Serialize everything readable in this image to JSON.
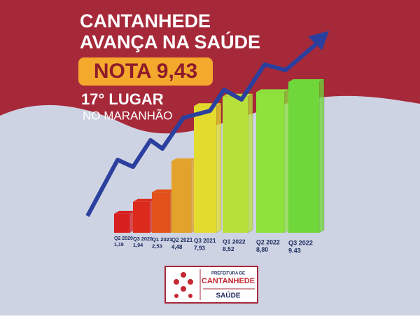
{
  "chart_data": {
    "type": "bar",
    "title": "CANTANHEDE",
    "subtitle": "AVANÇA NA SAÚDE",
    "annotations": [
      "NOTA 9,43",
      "17° LUGAR",
      "NO MARANHÃO"
    ],
    "categories": [
      "Q2 2020",
      "Q3 2020",
      "Q1 2021",
      "Q2 2021",
      "Q3 2021",
      "Q1 2022",
      "Q2 2022",
      "Q3 2022"
    ],
    "values": [
      1.19,
      1.94,
      2.53,
      4.48,
      7.93,
      8.52,
      8.8,
      9.43
    ],
    "value_labels": [
      "1,19",
      "1,94",
      "2,53",
      "4,48",
      "7,93",
      "8,52",
      "8,80",
      "9.43"
    ],
    "colors": [
      "#d81f1f",
      "#dc2a1c",
      "#e2521a",
      "#e3a22a",
      "#e3dc2e",
      "#b8e03a",
      "#8ee23c",
      "#6fd73a"
    ]
  },
  "logo": {
    "header": "PREFEITURA DE",
    "name": "CANTANHEDE",
    "department": "SAÚDE"
  }
}
